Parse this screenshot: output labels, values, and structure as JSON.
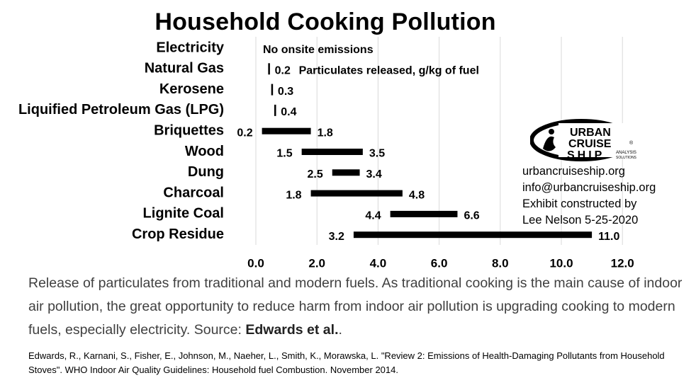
{
  "chart_data": {
    "type": "bar",
    "title": "Household Cooking Pollution",
    "categories": [
      "Electricity",
      "Natural Gas",
      "Kerosene",
      "Liquified Petroleum Gas (LPG)",
      "Briquettes",
      "Wood",
      "Dung",
      "Charcoal",
      "Lignite Coal",
      "Crop Residue"
    ],
    "ranges": [
      {
        "category": "Electricity",
        "low": null,
        "high": null,
        "note": "No onsite emissions"
      },
      {
        "category": "Natural Gas",
        "low": 0.2,
        "high": 0.2,
        "high_label": "0.2",
        "note": "Particulates released, g/kg of fuel"
      },
      {
        "category": "Kerosene",
        "low": 0.3,
        "high": 0.3,
        "high_label": "0.3"
      },
      {
        "category": "Liquified Petroleum Gas (LPG)",
        "low": 0.4,
        "high": 0.4,
        "high_label": "0.4"
      },
      {
        "category": "Briquettes",
        "low": 0.2,
        "high": 1.8,
        "low_label": "0.2",
        "high_label": "1.8"
      },
      {
        "category": "Wood",
        "low": 1.5,
        "high": 3.5,
        "low_label": "1.5",
        "high_label": "3.5"
      },
      {
        "category": "Dung",
        "low": 2.5,
        "high": 3.4,
        "low_label": "2.5",
        "high_label": "3.4"
      },
      {
        "category": "Charcoal",
        "low": 1.8,
        "high": 4.8,
        "low_label": "1.8",
        "high_label": "4.8"
      },
      {
        "category": "Lignite Coal",
        "low": 4.4,
        "high": 6.6,
        "low_label": "4.4",
        "high_label": "6.6"
      },
      {
        "category": "Crop Residue",
        "low": 3.2,
        "high": 11.0,
        "low_label": "3.2",
        "high_label": "11.0"
      }
    ],
    "xlim": [
      0,
      12
    ],
    "xticks": [
      "0.0",
      "2.0",
      "4.0",
      "6.0",
      "8.0",
      "10.0",
      "12.0"
    ],
    "grid": "vertical",
    "xlabel": "",
    "ylabel": "",
    "bar_color": "#000000",
    "grid_color": "#d9d9d9"
  },
  "logo": {
    "line1": "URBAN",
    "line2": "CRUISE",
    "line3": "SHIP",
    "sub1": "ANALYSIS",
    "sub2": "SOLUTIONS",
    "reg": "®"
  },
  "contact": {
    "website": "urbancruiseship.org",
    "email": "info@urbancruiseship.org",
    "credit_line1": "Exhibit constructed by",
    "credit_line2": "Lee Nelson 5-25-2020"
  },
  "caption": {
    "text": "Release of particulates from traditional and modern fuels. As traditional cooking is the main cause of indoor air pollution, the great opportunity to reduce harm from indoor air pollution is upgrading cooking to modern fuels, especially electricity. Source: ",
    "source": "Edwards et al.",
    "end": "."
  },
  "reference": {
    "text": "Edwards, R., Karnani, S., Fisher, E., Johnson, M., Naeher, L., Smith, K., Morawska, L. \"Review 2: Emissions of Health-Damaging Pollutants from Household Stoves\". WHO Indoor Air Quality Guidelines: Household fuel Combustion. November 2014."
  }
}
